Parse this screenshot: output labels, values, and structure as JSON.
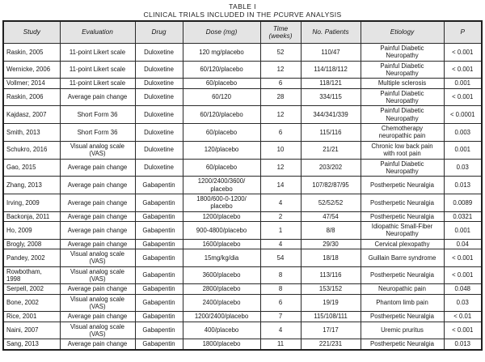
{
  "title": {
    "table_label": "TABLE I",
    "caption_prefix": "CLINICAL TRIALS INCLUDED IN THE ",
    "caption_italic": "P",
    "caption_suffix": "CURVE ANALYSIS"
  },
  "colors": {
    "header_bg": "#e4e4e4",
    "border": "#2a2a2a",
    "text": "#161616"
  },
  "columns": [
    "Study",
    "Evaluation",
    "Drug",
    "Dose (mg)",
    "Time\n(weeks)",
    "No. Patients",
    "Etiology",
    "P"
  ],
  "rows": [
    {
      "study": "Raskin, 2005",
      "evaluation": "11-point Likert scale",
      "drug": "Duloxetine",
      "dose": "120 mg/placebo",
      "time": "52",
      "patients": "110/47",
      "etiology": "Painful Diabetic\nNeuropathy",
      "p": "< 0.001"
    },
    {
      "study": "Wernicke, 2006",
      "evaluation": "11-point Likert scale",
      "drug": "Duloxetine",
      "dose": "60/120/placebo",
      "time": "12",
      "patients": "114/118/112",
      "etiology": "Painful Diabetic\nNeuropathy",
      "p": "< 0.001"
    },
    {
      "study": "Vollmer; 2014",
      "evaluation": "11-point Likert scale",
      "drug": "Duloxetine",
      "dose": "60/placebo",
      "time": "6",
      "patients": "118/121",
      "etiology": "Multiple sclerosis",
      "p": "0.001"
    },
    {
      "study": "Raskin, 2006",
      "evaluation": "Average pain change",
      "drug": "Duloxetine",
      "dose": "60/120",
      "time": "28",
      "patients": "334/115",
      "etiology": "Painful Diabetic\nNeuropathy",
      "p": "< 0.001"
    },
    {
      "study": "Kajdasz, 2007",
      "evaluation": "Short Form 36",
      "drug": "Duloxetine",
      "dose": "60/120/placebo",
      "time": "12",
      "patients": "344/341/339",
      "etiology": "Painful Diabetic\nNeuropathy",
      "p": "< 0.0001"
    },
    {
      "study": "Smith, 2013",
      "evaluation": "Short Form 36",
      "drug": "Duloxetine",
      "dose": "60/placebo",
      "time": "6",
      "patients": "115/116",
      "etiology": "Chemotherapy\nneuropathic pain",
      "p": "0.003"
    },
    {
      "study": "Schukro, 2016",
      "evaluation": "Visual analog scale\n(VAS)",
      "drug": "Duloxetine",
      "dose": "120/placebo",
      "time": "10",
      "patients": "21/21",
      "etiology": "Chronic low back pain\nwith root pain",
      "p": "0.001"
    },
    {
      "study": "Gao, 2015",
      "evaluation": "Average pain change",
      "drug": "Duloxetine",
      "dose": "60/placebo",
      "time": "12",
      "patients": "203/202",
      "etiology": "Painful Diabetic\nNeuropathy",
      "p": "0.03"
    },
    {
      "study": "Zhang, 2013",
      "evaluation": "Average pain change",
      "drug": "Gabapentin",
      "dose": "1200/2400/3600/\nplacebo",
      "time": "14",
      "patients": "107/82/87/95",
      "etiology": "Postherpetic Neuralgia",
      "p": "0.013"
    },
    {
      "study": "Irving, 2009",
      "evaluation": "Average pain change",
      "drug": "Gabapentin",
      "dose": "1800/600-0-1200/\nplacebo",
      "time": "4",
      "patients": "52/52/52",
      "etiology": "Postherpetic Neuralgia",
      "p": "0.0089"
    },
    {
      "study": "Backonja, 2011",
      "evaluation": "Average pain change",
      "drug": "Gabapentin",
      "dose": "1200/placebo",
      "time": "2",
      "patients": "47/54",
      "etiology": "Postherpetic Neuralgia",
      "p": "0.0321"
    },
    {
      "study": "Ho, 2009",
      "evaluation": "Average pain change",
      "drug": "Gabapentin",
      "dose": "900-4800/placebo",
      "time": "1",
      "patients": "8/8",
      "etiology": "Idiopathic Small-Fiber\nNeuropathy",
      "p": "0.001"
    },
    {
      "study": "Brogly, 2008",
      "evaluation": "Average pain change",
      "drug": "Gabapentin",
      "dose": "1600/placebo",
      "time": "4",
      "patients": "29/30",
      "etiology": "Cervical plexopathy",
      "p": "0.04"
    },
    {
      "study": "Pandey, 2002",
      "evaluation": "Visual analog scale\n(VAS)",
      "drug": "Gabapentin",
      "dose": "15mg/kg/dia",
      "time": "54",
      "patients": "18/18",
      "etiology": "Guillain Barre syndrome",
      "p": "< 0.001"
    },
    {
      "study": "Rowbotham,\n1998",
      "evaluation": "Visual analog scale\n(VAS)",
      "drug": "Gabapentin",
      "dose": "3600/placebo",
      "time": "8",
      "patients": "113/116",
      "etiology": "Postherpetic Neuralgia",
      "p": "< 0.001"
    },
    {
      "study": "Serpell, 2002",
      "evaluation": "Average pain change",
      "drug": "Gabapentin",
      "dose": "2800/placebo",
      "time": "8",
      "patients": "153/152",
      "etiology": "Neuropathic pain",
      "p": "0.048"
    },
    {
      "study": "Bone, 2002",
      "evaluation": "Visual analog scale\n(VAS)",
      "drug": "Gabapentin",
      "dose": "2400/placebo",
      "time": "6",
      "patients": "19/19",
      "etiology": "Phantom limb pain",
      "p": "0.03"
    },
    {
      "study": "Rice, 2001",
      "evaluation": "Average pain change",
      "drug": "Gabapentin",
      "dose": "1200/2400/placebo",
      "time": "7",
      "patients": "115/108/111",
      "etiology": "Postherpetic Neuralgia",
      "p": "< 0.01"
    },
    {
      "study": "Naini, 2007",
      "evaluation": "Visual analog scale\n(VAS)",
      "drug": "Gabapentin",
      "dose": "400/placebo",
      "time": "4",
      "patients": "17/17",
      "etiology": "Uremic pruritus",
      "p": "< 0.001"
    },
    {
      "study": "Sang, 2013",
      "evaluation": "Average pain change",
      "drug": "Gabapentin",
      "dose": "1800/placebo",
      "time": "11",
      "patients": "221/231",
      "etiology": "Postherpetic Neuralgia",
      "p": "0.013"
    }
  ]
}
